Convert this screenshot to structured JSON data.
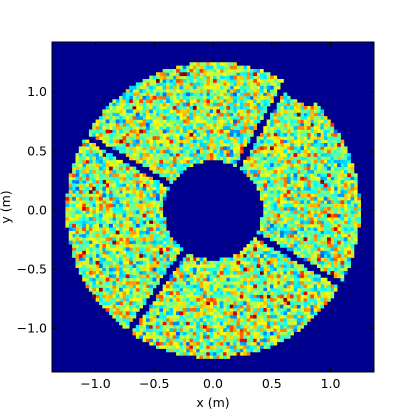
{
  "chart_data": {
    "type": "heatmap",
    "title": "",
    "xlabel": "x (m)",
    "ylabel": "y (m)",
    "xlim": [
      -1.37,
      1.37
    ],
    "ylim": [
      -1.37,
      1.42
    ],
    "xticks": [
      -1.0,
      -0.5,
      0.0,
      0.5,
      1.0
    ],
    "xtick_labels": [
      "−1.0",
      "−0.5",
      "0.0",
      "0.5",
      "1.0"
    ],
    "yticks": [
      1.0,
      0.5,
      0.0,
      -0.5,
      -1.0
    ],
    "ytick_labels": [
      "1.0",
      "0.5",
      "0.0",
      "−0.5",
      "−1.0"
    ],
    "grid": false,
    "colormap": "jet",
    "background_color": "#00008f",
    "annulus": {
      "center": [
        0.0,
        0.0
      ],
      "inner_radius": 0.42,
      "outer_radius": 1.25
    },
    "spokes_deg": [
      60,
      150,
      235,
      330
    ],
    "notch": {
      "center": [
        0.82,
        1.12
      ],
      "radius": 0.23
    },
    "intensity": {
      "min": 0.0,
      "max": 1.0,
      "typical": 0.52
    }
  }
}
